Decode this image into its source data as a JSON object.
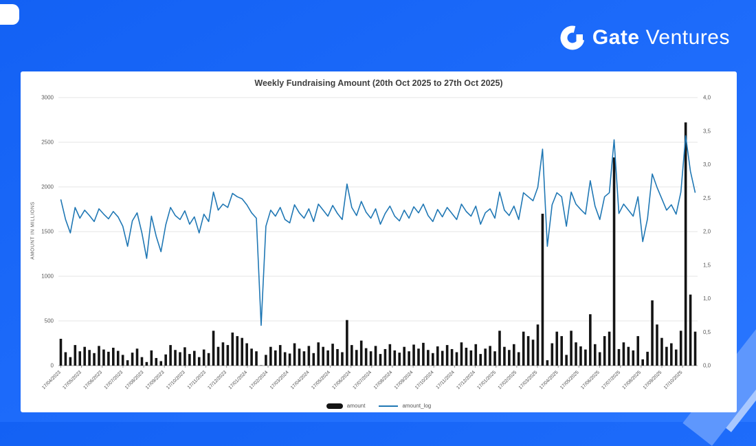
{
  "page": {
    "background_color": "#1E6CFB",
    "panel_color": "#ffffff",
    "decoration_colors": [
      "#5E97FD",
      "#A9C8FE"
    ]
  },
  "brand": {
    "name_bold": "Gate",
    "name_light": "Ventures",
    "logo_color": "#ffffff"
  },
  "chart_data": {
    "type": "combo-bar-line",
    "title": "Weekly Fundraising Amount (20th Oct 2025 to 27th Oct 2025)",
    "ylabel_left": "AMOUNT IN MILLIONS",
    "frequency": "weekly",
    "grid": true,
    "left_axis": {
      "min": 0,
      "max": 3000,
      "step": 500,
      "tick_labels": [
        "0",
        "500",
        "1000",
        "1500",
        "2000",
        "2500",
        "3000"
      ]
    },
    "right_axis": {
      "min": 0,
      "max": 4,
      "step": 0.5,
      "tick_labels": [
        "0,0",
        "0,5",
        "1,0",
        "1,5",
        "2,0",
        "2,5",
        "3,0",
        "3,5",
        "4,0"
      ]
    },
    "x_start": "17/04/2023",
    "x_tick_labels": [
      "17/04/2023",
      "17/05/2023",
      "17/06/2023",
      "17/07/2023",
      "17/08/2023",
      "17/09/2023",
      "17/10/2023",
      "17/11/2023",
      "17/12/2023",
      "17/01/2024",
      "17/02/2024",
      "17/03/2024",
      "17/04/2024",
      "17/05/2024",
      "17/06/2024",
      "17/07/2024",
      "17/08/2024",
      "17/09/2024",
      "17/10/2024",
      "17/11/2024",
      "17/12/2024",
      "17/01/2025",
      "17/02/2025",
      "17/03/2025",
      "17/04/2025",
      "17/05/2025",
      "17/06/2025",
      "17/07/2025",
      "17/08/2025",
      "17/09/2025",
      "17/10/2025"
    ],
    "series": [
      {
        "name": "amount",
        "type": "bar",
        "axis": "left",
        "color": "#141414",
        "values": [
          300,
          150,
          95,
          230,
          160,
          210,
          175,
          140,
          220,
          180,
          155,
          200,
          165,
          120,
          60,
          145,
          190,
          95,
          40,
          170,
          85,
          50,
          125,
          230,
          175,
          150,
          205,
          130,
          165,
          95,
          180,
          140,
          390,
          210,
          260,
          230,
          370,
          330,
          310,
          250,
          190,
          160,
          4,
          120,
          210,
          170,
          230,
          150,
          135,
          250,
          190,
          160,
          220,
          140,
          260,
          210,
          170,
          245,
          185,
          150,
          510,
          230,
          175,
          280,
          195,
          160,
          220,
          130,
          185,
          240,
          170,
          145,
          210,
          160,
          235,
          190,
          255,
          175,
          140,
          215,
          165,
          230,
          185,
          150,
          260,
          200,
          170,
          240,
          130,
          190,
          220,
          160,
          390,
          210,
          175,
          240,
          150,
          380,
          330,
          290,
          460,
          1700,
          60,
          250,
          380,
          330,
          120,
          390,
          260,
          215,
          180,
          575,
          240,
          150,
          330,
          380,
          2330,
          185,
          260,
          210,
          170,
          330,
          70,
          155,
          730,
          460,
          310,
          210,
          250,
          180,
          390,
          2722,
          795,
          380
        ]
      },
      {
        "name": "amount_log",
        "type": "line",
        "axis": "right",
        "color": "#1f77b4",
        "values": [
          2.48,
          2.18,
          1.98,
          2.36,
          2.2,
          2.32,
          2.24,
          2.15,
          2.34,
          2.26,
          2.19,
          2.3,
          2.22,
          2.08,
          1.78,
          2.16,
          2.28,
          1.98,
          1.6,
          2.23,
          1.93,
          1.7,
          2.1,
          2.36,
          2.24,
          2.18,
          2.31,
          2.11,
          2.22,
          1.98,
          2.26,
          2.15,
          2.59,
          2.32,
          2.41,
          2.36,
          2.57,
          2.52,
          2.49,
          2.4,
          2.28,
          2.2,
          0.6,
          2.08,
          2.32,
          2.23,
          2.36,
          2.18,
          2.13,
          2.4,
          2.28,
          2.2,
          2.34,
          2.15,
          2.41,
          2.32,
          2.23,
          2.39,
          2.27,
          2.18,
          2.71,
          2.36,
          2.24,
          2.45,
          2.29,
          2.2,
          2.34,
          2.11,
          2.27,
          2.38,
          2.23,
          2.16,
          2.32,
          2.2,
          2.37,
          2.28,
          2.41,
          2.24,
          2.15,
          2.33,
          2.22,
          2.36,
          2.27,
          2.18,
          2.41,
          2.3,
          2.23,
          2.38,
          2.11,
          2.28,
          2.34,
          2.2,
          2.59,
          2.32,
          2.24,
          2.38,
          2.18,
          2.58,
          2.52,
          2.46,
          2.66,
          3.23,
          1.78,
          2.4,
          2.58,
          2.52,
          2.08,
          2.59,
          2.41,
          2.33,
          2.26,
          2.76,
          2.38,
          2.18,
          2.52,
          2.58,
          3.37,
          2.27,
          2.41,
          2.32,
          2.23,
          2.52,
          1.85,
          2.19,
          2.86,
          2.66,
          2.49,
          2.32,
          2.4,
          2.26,
          2.59,
          3.43,
          2.9,
          2.58
        ]
      }
    ],
    "legend": [
      {
        "label": "amount"
      },
      {
        "label": "amount_log"
      }
    ]
  }
}
